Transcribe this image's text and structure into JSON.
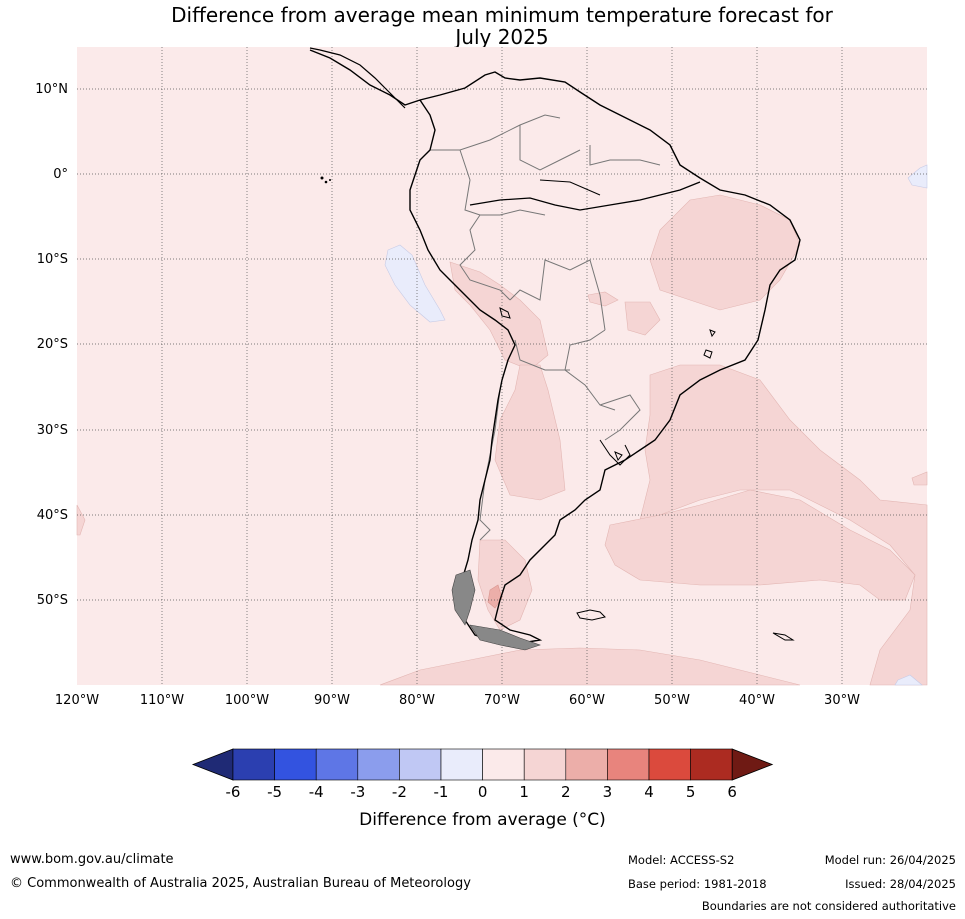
{
  "title_line1": "Difference from average mean minimum temperature forecast for",
  "title_line2": "July 2025",
  "lat_labels": [
    "10°N",
    "0°",
    "10°S",
    "20°S",
    "30°S",
    "40°S",
    "50°S"
  ],
  "lon_labels": [
    "120°W",
    "110°W",
    "100°W",
    "90°W",
    "80°W",
    "70°W",
    "60°W",
    "50°W",
    "40°W",
    "30°W"
  ],
  "colorbar": {
    "ticks": [
      "-6",
      "-5",
      "-4",
      "-3",
      "-2",
      "-1",
      "0",
      "1",
      "2",
      "3",
      "4",
      "5",
      "6"
    ],
    "colors": [
      "#1f2a75",
      "#2b3fb0",
      "#3353e0",
      "#5e76e6",
      "#8b9ded",
      "#c0c8f4",
      "#e9ecfb",
      "#fbeaea",
      "#f5d5d4",
      "#ecaea9",
      "#e8847d",
      "#db4a3d",
      "#ac2b21",
      "#6f1a14"
    ],
    "label": "Difference from average (°C)"
  },
  "footer": {
    "website": "www.bom.gov.au/climate",
    "copyright": "© Commonwealth of Australia 2025, Australian Bureau of Meteorology",
    "model": "Model: ACCESS-S2",
    "base_period": "Base period: 1981-2018",
    "model_run": "Model run: 26/04/2025",
    "issued": "Issued: 28/04/2025",
    "disclaimer": "Boundaries are not considered authoritative"
  }
}
